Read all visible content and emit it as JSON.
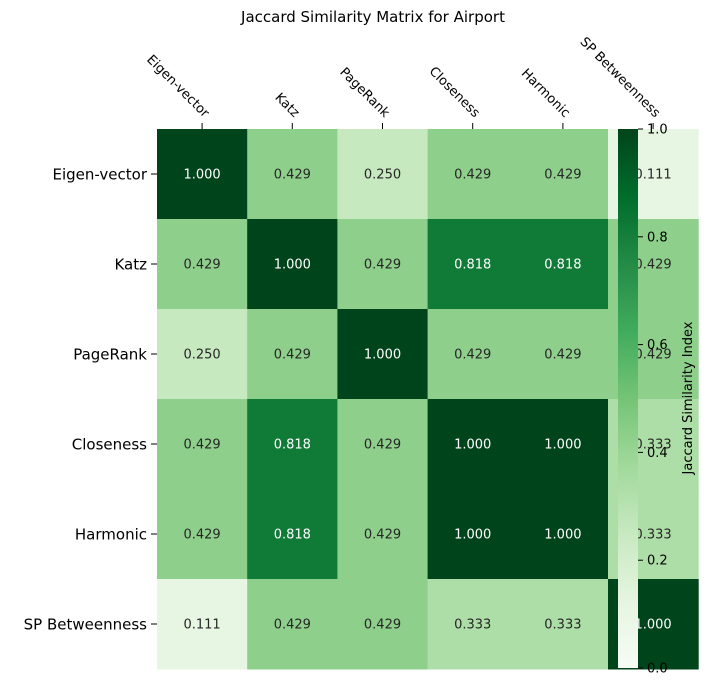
{
  "chart_data": {
    "type": "heatmap",
    "title": "Jaccard Similarity Matrix for Airport",
    "rows": [
      "Eigen-vector",
      "Katz",
      "PageRank",
      "Closeness",
      "Harmonic",
      "SP Betweenness"
    ],
    "columns": [
      "Eigen-vector",
      "Katz",
      "PageRank",
      "Closeness",
      "Harmonic",
      "SP Betweenness"
    ],
    "values": [
      [
        1.0,
        0.429,
        0.25,
        0.429,
        0.429,
        0.111
      ],
      [
        0.429,
        1.0,
        0.429,
        0.818,
        0.818,
        0.429
      ],
      [
        0.25,
        0.429,
        1.0,
        0.429,
        0.429,
        0.429
      ],
      [
        0.429,
        0.818,
        0.429,
        1.0,
        1.0,
        0.333
      ],
      [
        0.429,
        0.818,
        0.429,
        1.0,
        1.0,
        0.333
      ],
      [
        0.111,
        0.429,
        0.429,
        0.333,
        0.333,
        1.0
      ]
    ],
    "value_format": "3 decimals",
    "colormap": "Greens",
    "colorbar": {
      "label": "Jaccard Similarity Index",
      "range": [
        0.0,
        1.0
      ],
      "ticks": [
        "0.0",
        "0.2",
        "0.4",
        "0.6",
        "0.8",
        "1.0"
      ],
      "position": "right"
    },
    "column_labels_position": "top",
    "grid": false
  }
}
